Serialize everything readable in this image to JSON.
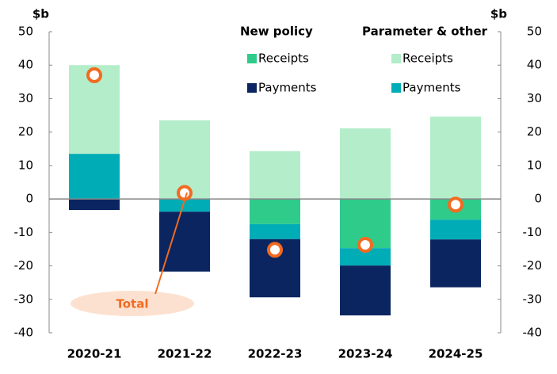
{
  "chart_data": {
    "type": "stacked-bar",
    "y_label": "$b",
    "y2_label": "$b",
    "categories": [
      "2020-21",
      "2021-22",
      "2022-23",
      "2023-24",
      "2024-25"
    ],
    "ylim": [
      -40,
      50
    ],
    "yticks": [
      -40,
      -30,
      -20,
      -10,
      0,
      10,
      20,
      30,
      40,
      50
    ],
    "y2lim": [
      -40,
      50
    ],
    "y2ticks": [
      -40,
      -30,
      -20,
      -10,
      0,
      10,
      20,
      30,
      40,
      50
    ],
    "series": [
      {
        "name": "Receipts",
        "group": "New policy",
        "color": "#2fcb8a",
        "values": [
          null,
          null,
          -7.5,
          -14.7,
          -6.2
        ]
      },
      {
        "name": "Payments",
        "group": "Parameter & other",
        "color": "#00acb6",
        "values": [
          13.5,
          -3.8,
          -4.5,
          -5.2,
          -5.9
        ]
      },
      {
        "name": "Payments",
        "group": "New policy",
        "color": "#0b2560",
        "values": [
          -3.3,
          -17.9,
          -17.4,
          -14.9,
          -14.3
        ]
      },
      {
        "name": "Receipts",
        "group": "Parameter & other",
        "color": "#b3edc9",
        "values": [
          26.5,
          23.5,
          14.3,
          21.1,
          24.6
        ]
      },
      {
        "name": "Total",
        "type": "marker",
        "color": "#f26b21",
        "values": [
          37,
          1.8,
          -15.2,
          -13.7,
          -1.7
        ]
      }
    ]
  }
}
